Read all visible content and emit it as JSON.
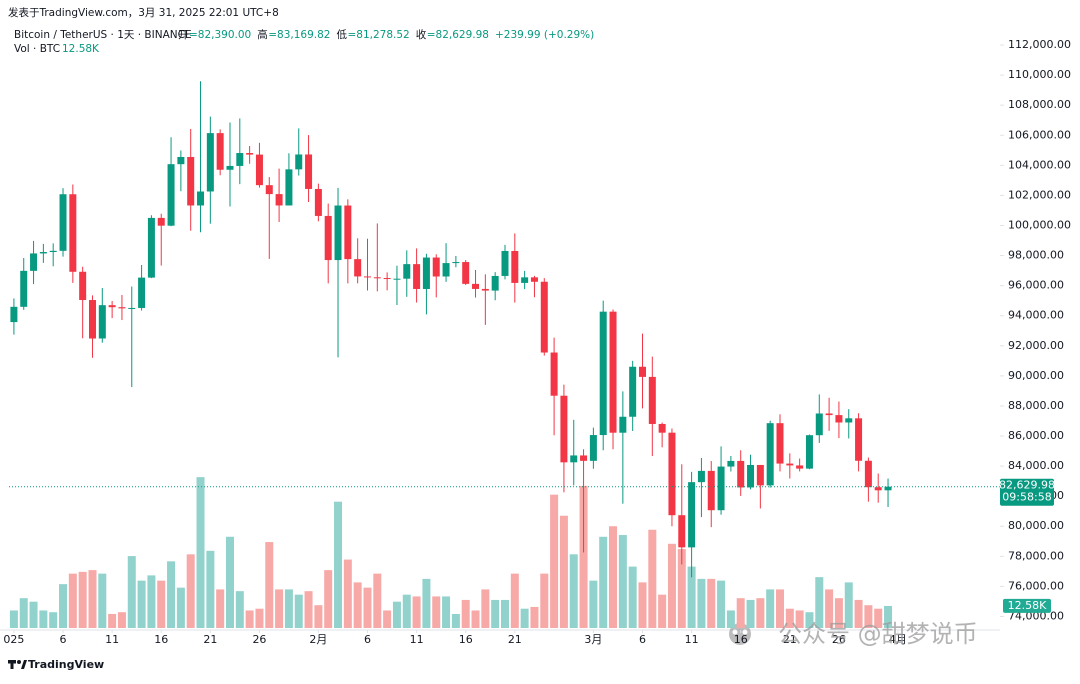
{
  "header": {
    "published": "发表于TradingView.com，3月 31, 2025 22:01 UTC+8",
    "symbol": "Bitcoin / TetherUS · 1天 · BINANCE",
    "ohlc": [
      {
        "label": "开",
        "value": "=82,390.00"
      },
      {
        "label": "高",
        "value": "=83,169.82"
      },
      {
        "label": "低",
        "value": "=81,278.52"
      },
      {
        "label": "收",
        "value": "=82,629.98"
      }
    ],
    "change": "+239.99 (+0.29%)",
    "vol_label": "Vol · BTC",
    "vol_value": "12.58K"
  },
  "chart_data": {
    "type": "candlestick",
    "open": [
      93576,
      94591,
      96984,
      98142,
      98235,
      98315,
      102078,
      96922,
      95043,
      92484,
      94701,
      94566,
      94488,
      94516,
      96534,
      100505,
      99987,
      104077,
      104556,
      101331,
      102260,
      106143,
      103706,
      103960,
      104819,
      104714,
      102682,
      102087,
      101332,
      103733,
      104722,
      102429,
      100635,
      97700,
      101328,
      97763,
      96612,
      96554,
      96506,
      96444,
      96462,
      97430,
      95778,
      97869,
      96608,
      97500,
      97569,
      96118,
      95780,
      95671,
      96644,
      98305,
      96181,
      96551,
      96258,
      91552,
      88680,
      84250,
      84708,
      84349,
      86064,
      94270,
      86220,
      87281,
      90606,
      89931,
      86801,
      86222,
      80734,
      78595,
      82932,
      83680,
      81066,
      83969,
      84343,
      82579,
      84075,
      82718,
      86854,
      84167,
      84043,
      83832,
      86054,
      87498,
      87391,
      86900,
      87177,
      84353,
      82597,
      82390
    ],
    "high": [
      95151,
      97839,
      98976,
      98778,
      98813,
      102482,
      102724,
      97258,
      95350,
      95837,
      94977,
      95378,
      95940,
      97371,
      100681,
      100781,
      105865,
      104988,
      106422,
      109588,
      107240,
      106394,
      106850,
      107120,
      105286,
      105500,
      103221,
      103783,
      104800,
      106457,
      106012,
      102783,
      101456,
      102500,
      101740,
      99149,
      99120,
      100137,
      96880,
      97323,
      98345,
      98478,
      98119,
      98083,
      98826,
      97972,
      97704,
      97046,
      96753,
      96899,
      98711,
      99475,
      96980,
      96650,
      96500,
      92540,
      89414,
      87078,
      85120,
      86558,
      95000,
      94416,
      88967,
      91000,
      92810,
      91283,
      86897,
      86500,
      84123,
      83617,
      84539,
      84336,
      85309,
      84672,
      85051,
      84756,
      84075,
      87021,
      87443,
      84850,
      84500,
      86100,
      88765,
      88542,
      88292,
      87786,
      87515,
      84567,
      83505,
      83169.82
    ],
    "low": [
      92743,
      94392,
      96100,
      97514,
      97290,
      97926,
      96181,
      92500,
      91203,
      92206,
      93840,
      93712,
      89256,
      94346,
      96500,
      97335,
      99950,
      102277,
      99651,
      99550,
      100119,
      103339,
      101262,
      102750,
      104106,
      102520,
      97777,
      100233,
      101328,
      103319,
      101560,
      100279,
      96150,
      91231,
      96150,
      96155,
      95676,
      95620,
      95688,
      94713,
      95256,
      94876,
      94088,
      95217,
      96252,
      97223,
      96046,
      95205,
      93388,
      95029,
      96415,
      94871,
      95770,
      95227,
      91349,
      86050,
      82256,
      82716,
      78258,
      83824,
      85050,
      85117,
      81500,
      86334,
      87836,
      84667,
      85248,
      80000,
      77459,
      76606,
      80607,
      79939,
      80766,
      83639,
      82017,
      82457,
      81179,
      82569,
      83647,
      83175,
      83647,
      83795,
      85541,
      86346,
      85861,
      85837,
      83647,
      81634,
      81565,
      81278.52
    ],
    "close": [
      94591,
      96984,
      98142,
      98235,
      98315,
      102078,
      96922,
      95043,
      92484,
      94701,
      94566,
      94488,
      94516,
      96534,
      100505,
      99987,
      104077,
      104556,
      101331,
      102260,
      106143,
      103706,
      103960,
      104819,
      104714,
      102682,
      102087,
      101332,
      103733,
      104722,
      102429,
      100635,
      97700,
      101328,
      97763,
      96612,
      96554,
      96506,
      96444,
      96462,
      97430,
      95778,
      97869,
      96608,
      97500,
      97569,
      96118,
      95780,
      95671,
      96644,
      98305,
      96181,
      96551,
      96258,
      91552,
      88680,
      84250,
      84708,
      84349,
      86064,
      94270,
      86220,
      87281,
      90606,
      89931,
      86801,
      86222,
      80734,
      78595,
      82932,
      83680,
      81066,
      83969,
      84343,
      82579,
      84075,
      82718,
      86854,
      84167,
      84043,
      83832,
      86054,
      87498,
      87391,
      86900,
      87177,
      84353,
      82597,
      82390,
      82629.98
    ],
    "volume": [
      10,
      17,
      15,
      10,
      9,
      25,
      31,
      32,
      33,
      31,
      8,
      9,
      41,
      27,
      30,
      27,
      38,
      23,
      42,
      86,
      44,
      22,
      52,
      21,
      10,
      11,
      49,
      22,
      22,
      19,
      21,
      13,
      33,
      72,
      39,
      26,
      23,
      31,
      10,
      15,
      19,
      18,
      28,
      18,
      18,
      8,
      16,
      10,
      22,
      16,
      16,
      31,
      11,
      12,
      31,
      76,
      64,
      42,
      81,
      27,
      52,
      58,
      53,
      35,
      26,
      56,
      19,
      48,
      45,
      35,
      28,
      28,
      27,
      10,
      17,
      16,
      17,
      22,
      22,
      11,
      10,
      9,
      29,
      22,
      17,
      26,
      16,
      13,
      11,
      12.58
    ],
    "volume_label": "12.58K",
    "up_color": "#089981",
    "down_color": "#f23645",
    "up_volume_color": "#92d2cc",
    "down_volume_color": "#f7a9a7",
    "xlim": [
      -0.5,
      100.4
    ],
    "xticks": [
      {
        "value": 0,
        "label": "025"
      },
      {
        "value": 5,
        "label": "6"
      },
      {
        "value": 10,
        "label": "11"
      },
      {
        "value": 15,
        "label": "16"
      },
      {
        "value": 20,
        "label": "21"
      },
      {
        "value": 25,
        "label": "26"
      },
      {
        "value": 31,
        "label": "2月"
      },
      {
        "value": 36,
        "label": "6"
      },
      {
        "value": 41,
        "label": "11"
      },
      {
        "value": 46,
        "label": "16"
      },
      {
        "value": 51,
        "label": "21"
      },
      {
        "value": 59,
        "label": "3月"
      },
      {
        "value": 64,
        "label": "6"
      },
      {
        "value": 69,
        "label": "11"
      },
      {
        "value": 74,
        "label": "16"
      },
      {
        "value": 79,
        "label": "21"
      },
      {
        "value": 84,
        "label": "26"
      },
      {
        "value": 90,
        "label": "4月"
      }
    ],
    "ylim": [
      73100,
      113000
    ],
    "yticks": [
      {
        "value": 74000,
        "label": "74,000.00"
      },
      {
        "value": 76000,
        "label": "76,000.00"
      },
      {
        "value": 78000,
        "label": "78,000.00"
      },
      {
        "value": 80000,
        "label": "80,000.00"
      },
      {
        "value": 82000,
        "label": "82,000.00"
      },
      {
        "value": 84000,
        "label": "84,000.00"
      },
      {
        "value": 86000,
        "label": "86,000.00"
      },
      {
        "value": 88000,
        "label": "88,000.00"
      },
      {
        "value": 90000,
        "label": "90,000.00"
      },
      {
        "value": 92000,
        "label": "92,000.00"
      },
      {
        "value": 94000,
        "label": "94,000.00"
      },
      {
        "value": 96000,
        "label": "96,000.00"
      },
      {
        "value": 98000,
        "label": "98,000.00"
      },
      {
        "value": 100000,
        "label": "100,000.00"
      },
      {
        "value": 102000,
        "label": "102,000.00"
      },
      {
        "value": 104000,
        "label": "104,000.00"
      },
      {
        "value": 106000,
        "label": "106,000.00"
      },
      {
        "value": 108000,
        "label": "108,000.00"
      },
      {
        "value": 110000,
        "label": "110,000.00"
      },
      {
        "value": 112000,
        "label": "112,000.00"
      }
    ],
    "volume_lim": [
      0,
      114
    ],
    "grid": false,
    "last_price": 82629.98,
    "last_price_label": "82,629.98",
    "countdown": "09:58:58"
  },
  "watermark": "公众号 @甜梦说币",
  "footer": {
    "brand": "TradingView"
  }
}
